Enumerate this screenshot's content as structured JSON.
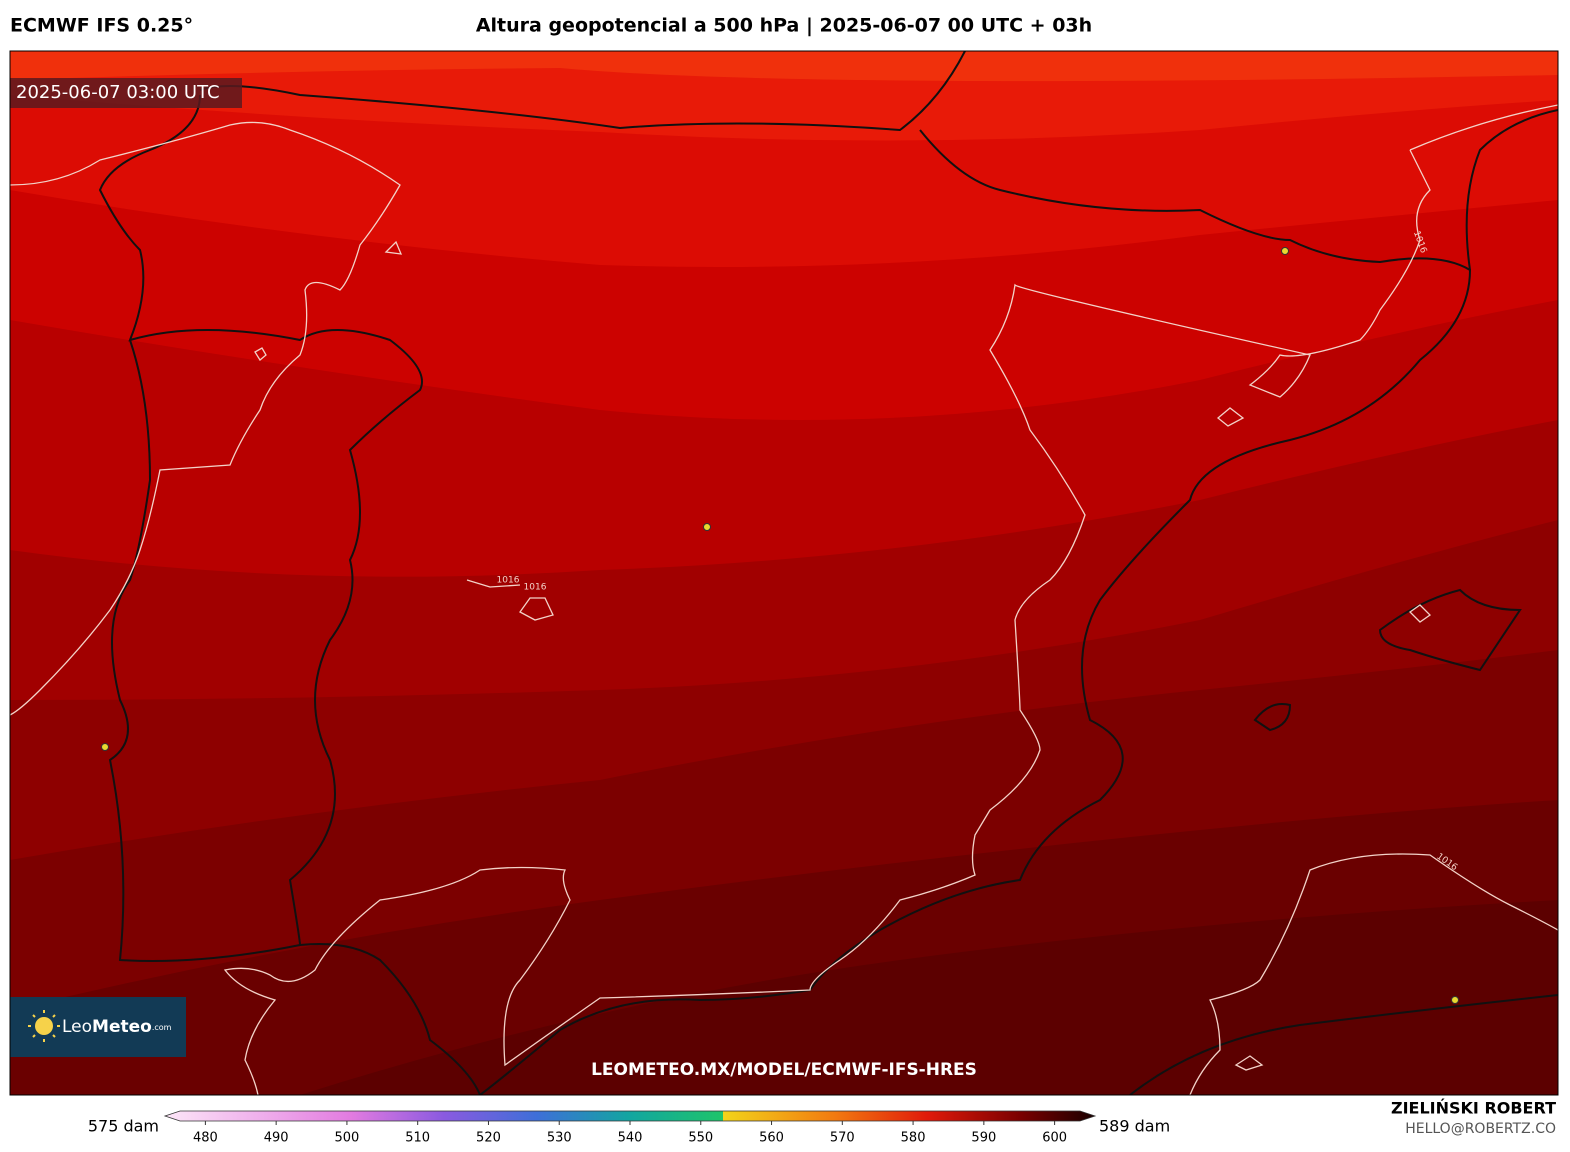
{
  "header": {
    "model": "ECMWF IFS 0.25°",
    "title": "Altura geopotencial a 500 hPa | 2025-06-07 00 UTC + 03h"
  },
  "map": {
    "valid_time": "2025-06-07 03:00 UTC",
    "isobar_labels": [
      "1016",
      "1016",
      "1016",
      "1016"
    ],
    "watermark": "LEOMETEO.MX/MODEL/ECMWF-IFS-HRES"
  },
  "logo": {
    "name": "Leo",
    "name_bold": "Meteo",
    "suffix": ".com"
  },
  "colorbar": {
    "min_label": "575 dam",
    "max_label": "589 dam",
    "lim": [
      475,
      605
    ],
    "ticks": [
      480,
      490,
      500,
      510,
      520,
      530,
      540,
      550,
      560,
      570,
      580,
      590,
      600
    ]
  },
  "footer": {
    "author": "ZIELIŃSKI ROBERT",
    "contact": "HELLO@ROBERTZ.CO"
  }
}
